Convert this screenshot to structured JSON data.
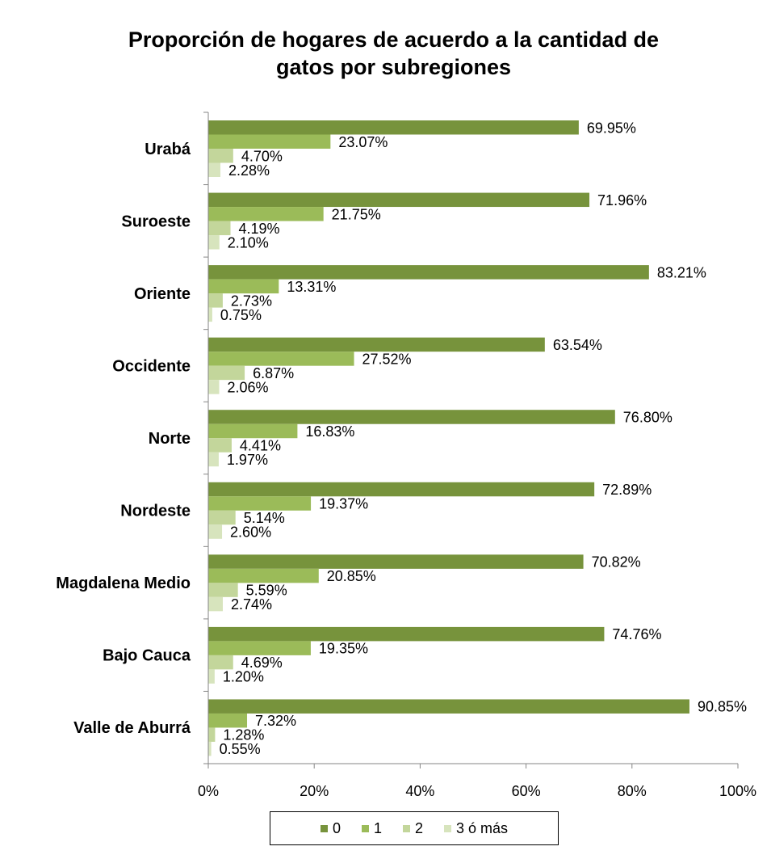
{
  "chart_data": {
    "type": "bar",
    "orientation": "horizontal",
    "title_lines": [
      "Proporción de hogares de acuerdo a la cantidad de",
      "gatos  por subregiones"
    ],
    "categories": [
      "Urabá",
      "Suroeste",
      "Oriente",
      "Occidente",
      "Norte",
      "Nordeste",
      "Magdalena Medio",
      "Bajo Cauca",
      "Valle de Aburrá"
    ],
    "series": [
      {
        "name": "0",
        "color": "#77933c",
        "values": [
          69.95,
          71.96,
          83.21,
          63.54,
          76.8,
          72.89,
          70.82,
          74.76,
          90.85
        ],
        "labels": [
          "69.95%",
          "71.96%",
          "83.21%",
          "63.54%",
          "76.80%",
          "72.89%",
          "70.82%",
          "74.76%",
          "90.85%"
        ]
      },
      {
        "name": "1",
        "color": "#9bbb59",
        "values": [
          23.07,
          21.75,
          13.31,
          27.52,
          16.83,
          19.37,
          20.85,
          19.35,
          7.32
        ],
        "labels": [
          "23.07%",
          "21.75%",
          "13.31%",
          "27.52%",
          "16.83%",
          "19.37%",
          "20.85%",
          "19.35%",
          "7.32%"
        ]
      },
      {
        "name": "2",
        "color": "#c3d69b",
        "values": [
          4.7,
          4.19,
          2.73,
          6.87,
          4.41,
          5.14,
          5.59,
          4.69,
          1.28
        ],
        "labels": [
          "4.70%",
          "4.19%",
          "2.73%",
          "6.87%",
          "4.41%",
          "5.14%",
          "5.59%",
          "4.69%",
          "1.28%"
        ]
      },
      {
        "name": "3 ó más",
        "color": "#d7e4bd",
        "values": [
          2.28,
          2.1,
          0.75,
          2.06,
          1.97,
          2.6,
          2.74,
          1.2,
          0.55
        ],
        "labels": [
          "2.28%",
          "2.10%",
          "0.75%",
          "2.06%",
          "1.97%",
          "2.60%",
          "2.74%",
          "1.20%",
          "0.55%"
        ]
      }
    ],
    "xlim": [
      0,
      100
    ],
    "x_ticks": [
      "0%",
      "20%",
      "40%",
      "60%",
      "80%",
      "100%"
    ],
    "grid": false,
    "legend_position": "bottom"
  }
}
